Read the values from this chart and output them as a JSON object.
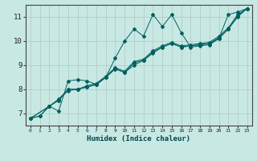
{
  "xlabel": "Humidex (Indice chaleur)",
  "ylabel": "",
  "background_color": "#c8e8e4",
  "grid_color": "#b0c8c4",
  "line_color": "#006060",
  "xlim": [
    -0.5,
    23.5
  ],
  "ylim": [
    6.5,
    11.5
  ],
  "xticks": [
    0,
    1,
    2,
    3,
    4,
    5,
    6,
    7,
    8,
    9,
    10,
    11,
    12,
    13,
    14,
    15,
    16,
    17,
    18,
    19,
    20,
    21,
    22,
    23
  ],
  "yticks": [
    7,
    8,
    9,
    10,
    11
  ],
  "lines": [
    {
      "x": [
        0,
        1,
        2,
        3,
        4,
        5,
        6,
        7,
        8,
        9,
        10,
        11,
        12,
        13,
        14,
        15,
        16,
        17,
        18,
        19,
        20,
        21,
        22,
        23
      ],
      "y": [
        6.8,
        6.9,
        7.3,
        7.1,
        8.35,
        8.4,
        8.35,
        8.2,
        8.5,
        9.3,
        10.0,
        10.5,
        10.2,
        11.1,
        10.6,
        11.1,
        10.35,
        9.75,
        9.8,
        9.85,
        10.1,
        11.1,
        11.2,
        11.35
      ]
    },
    {
      "x": [
        0,
        1,
        2,
        3,
        4,
        5,
        6,
        7,
        8,
        9,
        10,
        11,
        12,
        13,
        14,
        15,
        16,
        17,
        18,
        19,
        20,
        21,
        22,
        23
      ],
      "y": [
        6.8,
        6.9,
        7.3,
        7.55,
        8.0,
        8.0,
        8.1,
        8.2,
        8.5,
        8.85,
        8.7,
        9.0,
        9.2,
        9.5,
        9.75,
        9.9,
        9.75,
        9.8,
        9.85,
        9.9,
        10.1,
        10.5,
        11.0,
        11.35
      ]
    },
    {
      "x": [
        0,
        2,
        3,
        4,
        5,
        6,
        7,
        8,
        9,
        10,
        11,
        12,
        13,
        14,
        15,
        16,
        17,
        18,
        19,
        20,
        21,
        22,
        23
      ],
      "y": [
        6.8,
        7.3,
        7.55,
        7.95,
        8.0,
        8.1,
        8.2,
        8.5,
        8.85,
        8.7,
        9.1,
        9.2,
        9.55,
        9.75,
        9.9,
        9.75,
        9.8,
        9.85,
        9.9,
        10.15,
        10.5,
        11.05,
        11.35
      ]
    },
    {
      "x": [
        0,
        2,
        3,
        4,
        5,
        6,
        7,
        8,
        9,
        10,
        11,
        12,
        13,
        14,
        15,
        16,
        17,
        18,
        19,
        20,
        21,
        22,
        23
      ],
      "y": [
        6.8,
        7.3,
        7.6,
        8.0,
        8.0,
        8.15,
        8.25,
        8.55,
        8.9,
        8.75,
        9.15,
        9.25,
        9.6,
        9.8,
        9.95,
        9.8,
        9.85,
        9.9,
        9.95,
        10.2,
        10.55,
        11.1,
        11.35
      ]
    }
  ]
}
